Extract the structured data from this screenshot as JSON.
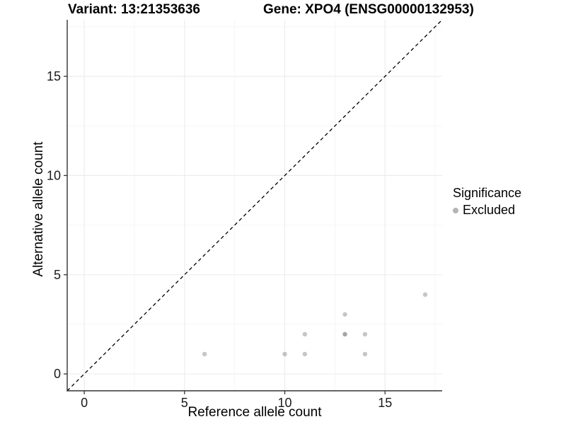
{
  "chart_data": {
    "type": "scatter",
    "title_left": "Variant: 13:21353636",
    "title_right": "Gene: XPO4 (ENSG00000132953)",
    "xlabel": "Reference allele count",
    "ylabel": "Alternative allele count",
    "xlim": [
      -0.85,
      17.85
    ],
    "ylim": [
      -0.85,
      17.85
    ],
    "x_ticks": [
      0,
      5,
      10,
      15
    ],
    "y_ticks": [
      0,
      5,
      10,
      15
    ],
    "x_minor_ticks": [
      2.5,
      7.5,
      12.5,
      17.5
    ],
    "y_minor_ticks": [
      2.5,
      7.5,
      12.5,
      17.5
    ],
    "grid": "major+minor",
    "identity_line": {
      "style": "dashed",
      "x1": -0.85,
      "y1": -0.85,
      "x2": 17.85,
      "y2": 17.85
    },
    "series": [
      {
        "name": "Excluded",
        "marker": "circle",
        "color": "#787878",
        "opacity": 0.42,
        "points": [
          [
            6,
            1
          ],
          [
            10,
            1
          ],
          [
            11,
            1
          ],
          [
            11,
            2
          ],
          [
            13,
            2
          ],
          [
            13,
            2
          ],
          [
            13,
            3
          ],
          [
            14,
            1
          ],
          [
            14,
            2
          ],
          [
            17,
            4
          ]
        ],
        "note": "point [13,2] occurs twice; overlap renders darker"
      }
    ],
    "legend": {
      "title": "Significance",
      "position": "right",
      "entries": [
        {
          "label": "Excluded",
          "swatch_color": "#b4b4b4"
        }
      ]
    }
  },
  "colors": {
    "background": "#ffffff",
    "grid_major": "#ebebeb",
    "grid_minor": "#f5f5f5",
    "axis_line": "#333333",
    "tick_text": "#1a1a1a",
    "identity_line": "#000000"
  }
}
